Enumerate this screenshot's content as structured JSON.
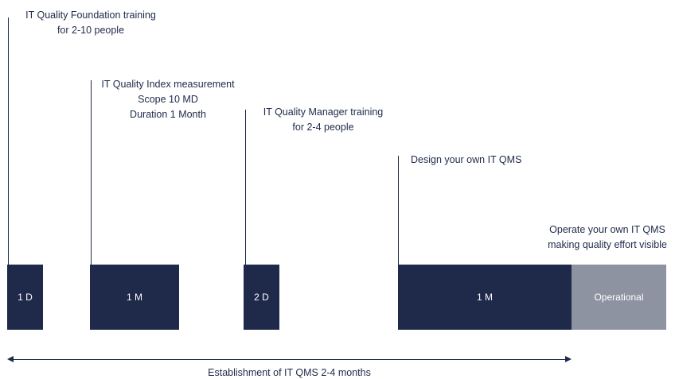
{
  "milestones": [
    {
      "lines": [
        "IT Quality Foundation training",
        "for 2-10 people"
      ]
    },
    {
      "lines": [
        "IT Quality Index measurement",
        "Scope 10 MD",
        "Duration 1 Month"
      ]
    },
    {
      "lines": [
        "IT Quality Manager training",
        "for 2-4 people"
      ]
    },
    {
      "lines": [
        "Design your own IT QMS"
      ]
    },
    {
      "lines": [
        "Operate your own IT QMS",
        "making quality effort visible"
      ]
    }
  ],
  "blocks": [
    {
      "label": "1 D"
    },
    {
      "label": "1 M"
    },
    {
      "label": "2 D"
    },
    {
      "label": "1 M"
    },
    {
      "label": "Operational"
    }
  ],
  "timeline": {
    "caption": "Establishment of IT QMS 2-4 months"
  },
  "colors": {
    "primary": "#1f2a4a",
    "operational": "#8e93a1"
  }
}
